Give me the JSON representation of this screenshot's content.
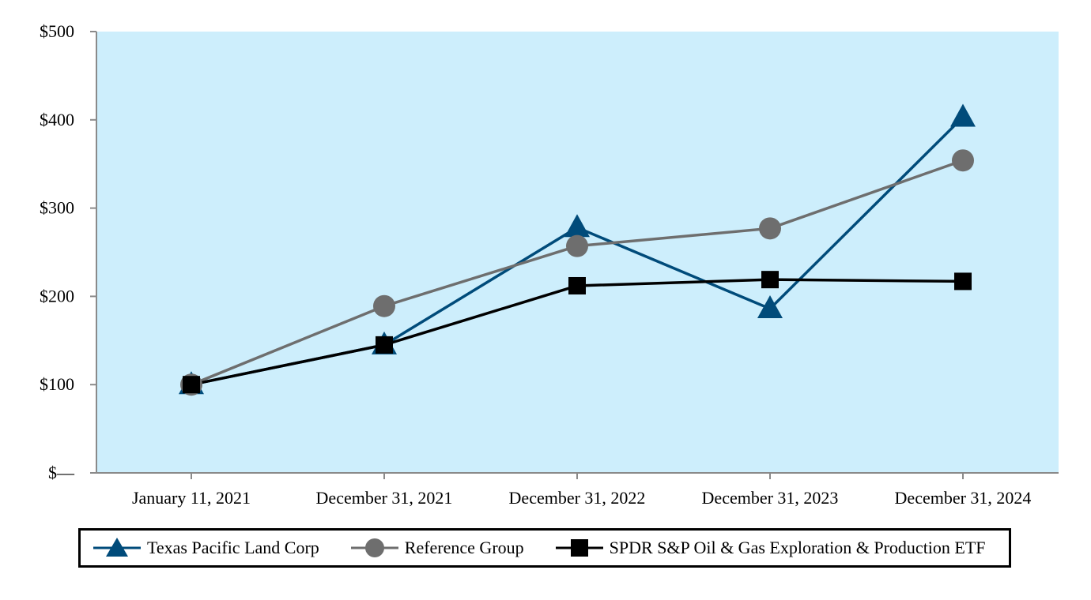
{
  "chart_data": {
    "type": "line",
    "title": "",
    "xlabel": "",
    "ylabel": "",
    "categories": [
      "January 11, 2021",
      "December 31, 2021",
      "December 31, 2022",
      "December 31, 2023",
      "December 31, 2024"
    ],
    "y_ticks": [
      0,
      100,
      200,
      300,
      400,
      500
    ],
    "y_tick_labels": [
      "$—",
      "$100",
      "$200",
      "$300",
      "$400",
      "$500"
    ],
    "ylim": [
      0,
      500
    ],
    "plot_background": "#cdeefc",
    "legend_position": "bottom",
    "series": [
      {
        "name": "Texas Pacific Land Corp",
        "marker": "triangle",
        "color": "#004b7a",
        "values": [
          100,
          145,
          278,
          186,
          403
        ]
      },
      {
        "name": "Reference Group",
        "marker": "circle",
        "color": "#6e6e6e",
        "values": [
          100,
          189,
          257,
          277,
          354
        ]
      },
      {
        "name": "SPDR S&P Oil & Gas Exploration & Production ETF",
        "marker": "square",
        "color": "#000000",
        "values": [
          100,
          145,
          212,
          219,
          217
        ]
      }
    ]
  }
}
